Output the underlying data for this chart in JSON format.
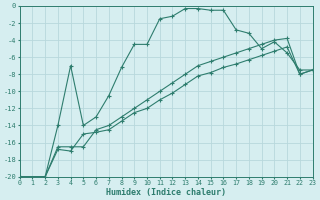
{
  "xlabel": "Humidex (Indice chaleur)",
  "bg_color": "#d6eef0",
  "line_color": "#2e7d6e",
  "grid_color": "#b8d8dc",
  "xlim": [
    0,
    23
  ],
  "ylim": [
    -20,
    0
  ],
  "xticks": [
    0,
    1,
    2,
    3,
    4,
    5,
    6,
    7,
    8,
    9,
    10,
    11,
    12,
    13,
    14,
    15,
    16,
    17,
    18,
    19,
    20,
    21,
    22,
    23
  ],
  "yticks": [
    0,
    -2,
    -4,
    -6,
    -8,
    -10,
    -12,
    -14,
    -16,
    -18,
    -20
  ],
  "curve1_x": [
    0,
    2,
    3,
    4,
    5,
    6,
    7,
    8,
    9,
    10,
    11,
    12,
    13,
    14,
    15,
    16,
    17,
    18,
    19,
    20,
    21,
    22,
    23
  ],
  "curve1_y": [
    -20,
    -20,
    -14,
    -7,
    -14,
    -13,
    -10.5,
    -7.2,
    -4.5,
    -4.5,
    -1.5,
    -1.2,
    -0.3,
    -0.3,
    -0.5,
    -0.5,
    -2.8,
    -3.2,
    -5,
    -4.2,
    -5.5,
    -7.5,
    -7.5
  ],
  "curve2_x": [
    0,
    2,
    3,
    4,
    5,
    6,
    7,
    8,
    9,
    10,
    11,
    12,
    13,
    14,
    15,
    16,
    17,
    18,
    19,
    20,
    21,
    22,
    23
  ],
  "curve2_y": [
    -20,
    -20,
    -16.5,
    -16.5,
    -16.5,
    -14.5,
    -14,
    -13,
    -12,
    -11,
    -10,
    -9,
    -8,
    -7,
    -6.5,
    -6,
    -5.5,
    -5,
    -4.5,
    -4,
    -3.8,
    -8,
    -7.5
  ],
  "curve3_x": [
    0,
    2,
    3,
    4,
    5,
    6,
    7,
    8,
    9,
    10,
    11,
    12,
    13,
    14,
    15,
    16,
    17,
    18,
    19,
    20,
    21,
    22,
    23
  ],
  "curve3_y": [
    -20,
    -20,
    -16.8,
    -17,
    -15,
    -14.8,
    -14.5,
    -13.5,
    -12.5,
    -12,
    -11,
    -10.2,
    -9.2,
    -8.2,
    -7.8,
    -7.2,
    -6.8,
    -6.3,
    -5.8,
    -5.3,
    -4.8,
    -8,
    -7.5
  ]
}
